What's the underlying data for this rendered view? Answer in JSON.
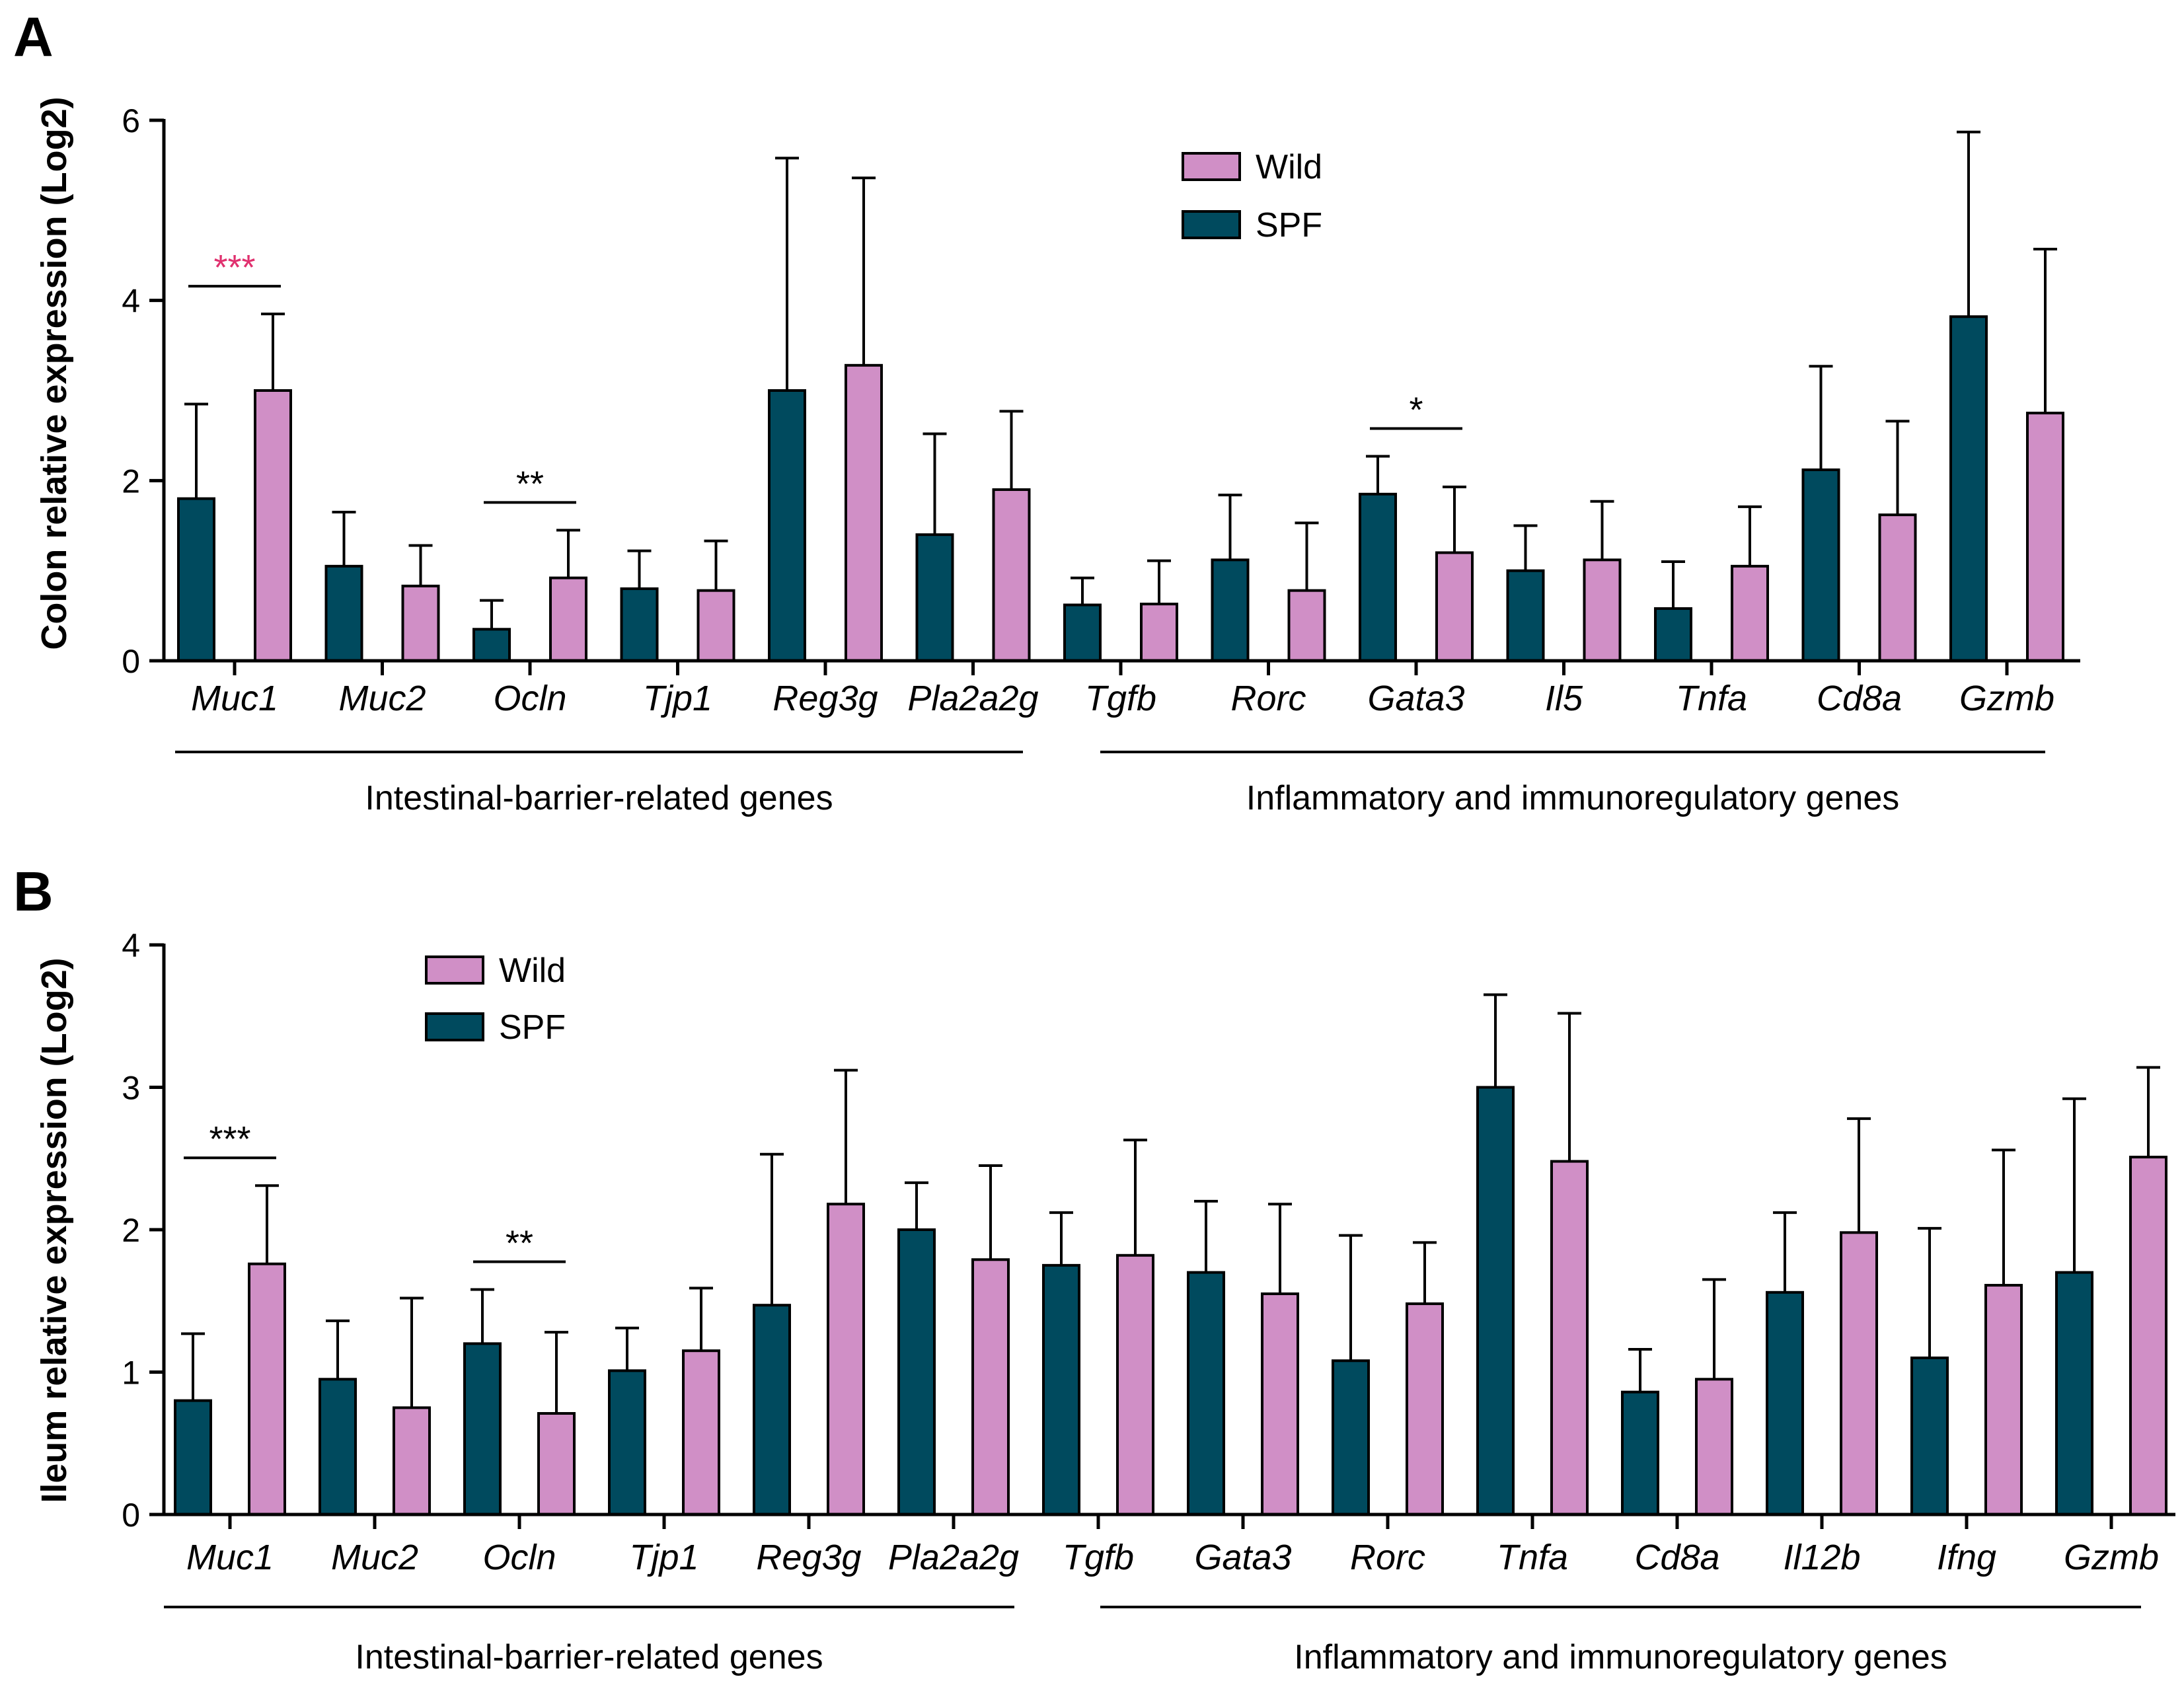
{
  "colors": {
    "wild": "#d08fc6",
    "spf": "#004a5e",
    "axis": "#000000",
    "sig_highlight": "#e0306e"
  },
  "chart_data": [
    {
      "type": "bar",
      "panel": "A",
      "ylabel": "Colon relative expression (Log2)",
      "ylim": [
        0,
        6
      ],
      "yticks": [
        0,
        2,
        4,
        6
      ],
      "legend": [
        "Wild",
        "SPF"
      ],
      "legend_placement": "top-center",
      "categories": [
        "Muc1",
        "Muc2",
        "Ocln",
        "Tjp1",
        "Reg3g",
        "Pla2a2g",
        "Tgfb",
        "Rorc",
        "Gata3",
        "Il5",
        "Tnfa",
        "Cd8a",
        "Gzmb"
      ],
      "series": [
        {
          "name": "SPF",
          "color": "#004a5e",
          "values": [
            1.8,
            1.05,
            0.35,
            0.8,
            3.0,
            1.4,
            0.62,
            1.12,
            1.85,
            1.0,
            0.58,
            2.12,
            3.82
          ],
          "errors": [
            1.05,
            0.6,
            0.32,
            0.42,
            2.58,
            1.12,
            0.3,
            0.72,
            0.42,
            0.5,
            0.52,
            1.15,
            2.05
          ]
        },
        {
          "name": "Wild",
          "color": "#d08fc6",
          "values": [
            3.0,
            0.83,
            0.92,
            0.78,
            3.28,
            1.9,
            0.63,
            0.78,
            1.2,
            1.12,
            1.05,
            1.62,
            2.75
          ],
          "errors": [
            0.85,
            0.45,
            0.53,
            0.55,
            2.08,
            0.87,
            0.48,
            0.75,
            0.73,
            0.65,
            0.66,
            1.04,
            1.82
          ]
        }
      ],
      "significance": [
        {
          "category": "Muc1",
          "label": "***",
          "highlight": true
        },
        {
          "category": "Ocln",
          "label": "**",
          "highlight": false
        },
        {
          "category": "Gata3",
          "label": "*",
          "highlight": false
        }
      ],
      "groups": [
        {
          "label": "Intestinal-barrier-related genes",
          "from": "Muc1",
          "to": "Pla2a2g"
        },
        {
          "label": "Inflammatory and immunoregulatory genes",
          "from": "Tgfb",
          "to": "Gzmb"
        }
      ]
    },
    {
      "type": "bar",
      "panel": "B",
      "ylabel": "Ileum relative expression (Log2)",
      "ylim": [
        0,
        4
      ],
      "yticks": [
        0,
        1,
        2,
        3,
        4
      ],
      "legend": [
        "Wild",
        "SPF"
      ],
      "legend_placement": "top-left",
      "categories": [
        "Muc1",
        "Muc2",
        "Ocln",
        "Tjp1",
        "Reg3g",
        "Pla2a2g",
        "Tgfb",
        "Gata3",
        "Rorc",
        "Tnfa",
        "Cd8a",
        "Il12b",
        "Ifng",
        "Gzmb"
      ],
      "series": [
        {
          "name": "SPF",
          "color": "#004a5e",
          "values": [
            0.8,
            0.95,
            1.2,
            1.01,
            1.47,
            2.0,
            1.75,
            1.7,
            1.08,
            3.0,
            0.86,
            1.56,
            1.1,
            1.7
          ],
          "errors": [
            0.47,
            0.41,
            0.38,
            0.3,
            1.06,
            0.33,
            0.37,
            0.5,
            0.88,
            0.65,
            0.3,
            0.56,
            0.91,
            1.22
          ]
        },
        {
          "name": "Wild",
          "color": "#d08fc6",
          "values": [
            1.76,
            0.75,
            0.71,
            1.15,
            2.18,
            1.79,
            1.82,
            1.55,
            1.48,
            2.48,
            0.95,
            1.98,
            1.61,
            2.51
          ],
          "errors": [
            0.55,
            0.77,
            0.57,
            0.44,
            0.94,
            0.66,
            0.81,
            0.63,
            0.43,
            1.04,
            0.7,
            0.8,
            0.95,
            0.63
          ]
        }
      ],
      "significance": [
        {
          "category": "Muc1",
          "label": "***",
          "highlight": false
        },
        {
          "category": "Ocln",
          "label": "**",
          "highlight": false
        }
      ],
      "groups": [
        {
          "label": "Intestinal-barrier-related genes",
          "from": "Muc1",
          "to": "Pla2a2g"
        },
        {
          "label": "Inflammatory and immunoregulatory genes",
          "from": "Tgfb",
          "to": "Gzmb"
        }
      ]
    }
  ]
}
